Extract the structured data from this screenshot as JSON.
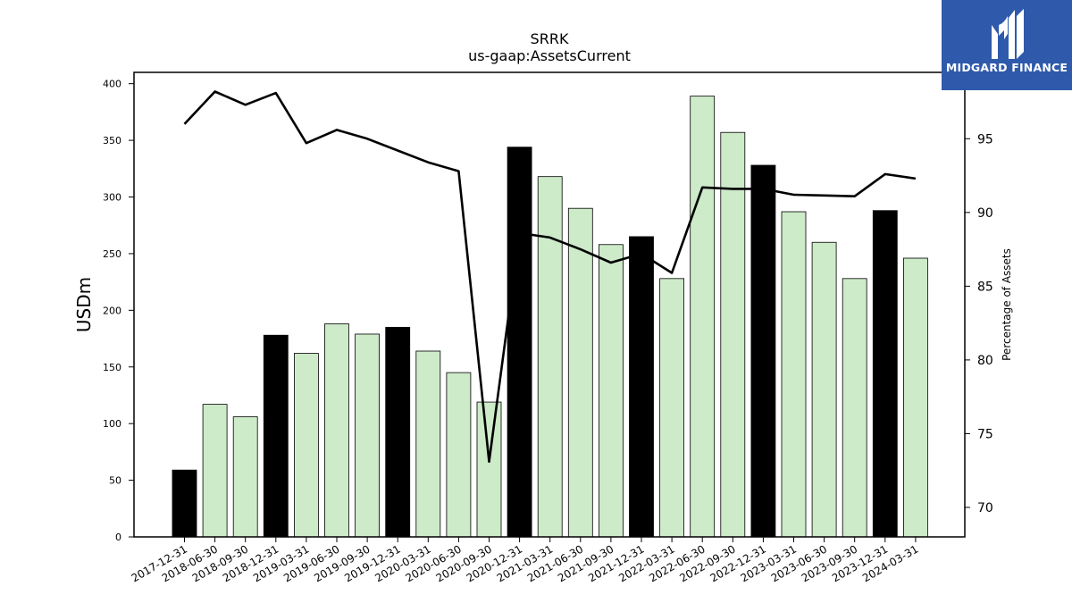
{
  "chart_data": {
    "type": "bar",
    "title": "SRRK",
    "subtitle": "us-gaap:AssetsCurrent",
    "ylabel": "USDm",
    "y2label": "Percentage of Assets",
    "ylim": [
      0,
      410
    ],
    "y2lim": [
      68,
      99.5
    ],
    "yticks": [
      0,
      50,
      100,
      150,
      200,
      250,
      300,
      350,
      400
    ],
    "y2ticks": [
      70,
      75,
      80,
      85,
      90,
      95
    ],
    "categories": [
      "2017-12-31",
      "2018-06-30",
      "2018-09-30",
      "2018-12-31",
      "2019-03-31",
      "2019-06-30",
      "2019-09-30",
      "2019-12-31",
      "2020-03-31",
      "2020-06-30",
      "2020-09-30",
      "2020-12-31",
      "2021-03-31",
      "2021-06-30",
      "2021-09-30",
      "2021-12-31",
      "2022-03-31",
      "2022-06-30",
      "2022-09-30",
      "2022-12-31",
      "2023-03-31",
      "2023-06-30",
      "2023-09-30",
      "2023-12-31",
      "2024-03-31"
    ],
    "series": [
      {
        "type": "bar",
        "axis": "left",
        "values": [
          59,
          117,
          106,
          178,
          162,
          188,
          179,
          185,
          164,
          145,
          119,
          344,
          318,
          290,
          258,
          265,
          228,
          389,
          357,
          328,
          287,
          260,
          228,
          288,
          246
        ],
        "annual_flags": [
          true,
          false,
          false,
          true,
          false,
          false,
          false,
          true,
          false,
          false,
          false,
          true,
          false,
          false,
          false,
          true,
          false,
          false,
          false,
          true,
          false,
          false,
          false,
          true,
          false
        ],
        "colors": {
          "annual": "#000000",
          "quarter": "#cdeac9"
        }
      },
      {
        "type": "line",
        "axis": "right",
        "color": "#000000",
        "values": [
          96.0,
          98.2,
          97.3,
          98.1,
          94.7,
          95.6,
          95.0,
          94.2,
          93.4,
          92.8,
          73.1,
          88.6,
          88.3,
          87.5,
          86.6,
          87.2,
          85.9,
          91.7,
          91.6,
          91.6,
          91.2,
          91.15,
          91.1,
          92.6,
          92.3
        ]
      }
    ],
    "grid": false,
    "legend": "none"
  },
  "logo": {
    "text": "MIDGARD FINANCE",
    "bg_color": "#2f5aab"
  }
}
